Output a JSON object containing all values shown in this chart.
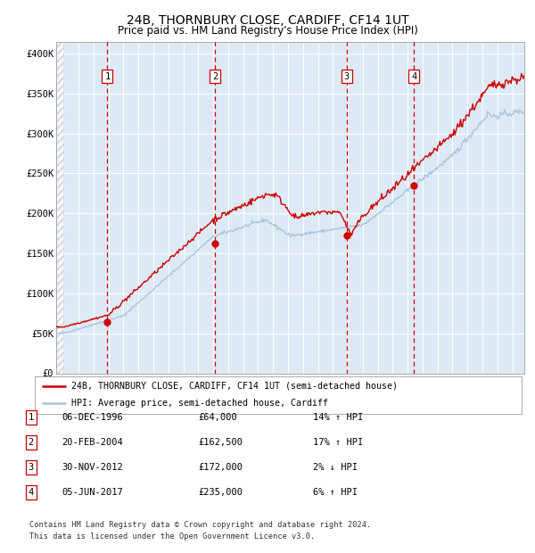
{
  "title": "24B, THORNBURY CLOSE, CARDIFF, CF14 1UT",
  "subtitle": "Price paid vs. HM Land Registry's House Price Index (HPI)",
  "ylabel_ticks": [
    "£0",
    "£50K",
    "£100K",
    "£150K",
    "£200K",
    "£250K",
    "£300K",
    "£350K",
    "£400K"
  ],
  "ytick_values": [
    0,
    50000,
    100000,
    150000,
    200000,
    250000,
    300000,
    350000,
    400000
  ],
  "ylim": [
    0,
    415000
  ],
  "xlim_start": 1993.5,
  "xlim_end": 2024.8,
  "hpi_color": "#aac5de",
  "price_color": "#cc0000",
  "sale_marker_color": "#cc0000",
  "dashed_line_color": "#cc0000",
  "background_color": "#ddeaf6",
  "grid_color": "#ffffff",
  "sale_points": [
    {
      "year": 1996.92,
      "price": 64000,
      "label": "1"
    },
    {
      "year": 2004.13,
      "price": 162500,
      "label": "2"
    },
    {
      "year": 2012.92,
      "price": 172000,
      "label": "3"
    },
    {
      "year": 2017.42,
      "price": 235000,
      "label": "4"
    }
  ],
  "table_rows": [
    {
      "num": "1",
      "date": "06-DEC-1996",
      "price": "£64,000",
      "change": "14% ↑ HPI"
    },
    {
      "num": "2",
      "date": "20-FEB-2004",
      "price": "£162,500",
      "change": "17% ↑ HPI"
    },
    {
      "num": "3",
      "date": "30-NOV-2012",
      "price": "£172,000",
      "change": "2% ↓ HPI"
    },
    {
      "num": "4",
      "date": "05-JUN-2017",
      "price": "£235,000",
      "change": "6% ↑ HPI"
    }
  ],
  "legend_line1": "24B, THORNBURY CLOSE, CARDIFF, CF14 1UT (semi-detached house)",
  "legend_line2": "HPI: Average price, semi-detached house, Cardiff",
  "footer": "Contains HM Land Registry data © Crown copyright and database right 2024.\nThis data is licensed under the Open Government Licence v3.0."
}
